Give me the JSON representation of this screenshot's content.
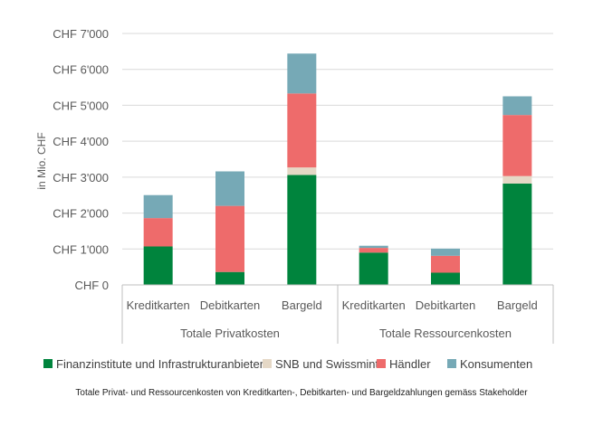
{
  "chart_data": {
    "type": "bar",
    "stacked": true,
    "title": "",
    "ylabel": "in Mio. CHF",
    "xlabel": "",
    "ylim": [
      0,
      7000
    ],
    "y_ticks": [
      0,
      1000,
      2000,
      3000,
      4000,
      5000,
      6000,
      7000
    ],
    "y_tick_labels": [
      "CHF 0",
      "CHF 1'000",
      "CHF 2'000",
      "CHF 3'000",
      "CHF 4'000",
      "CHF 5'000",
      "CHF 6'000",
      "CHF 7'000"
    ],
    "grid": true,
    "legend_position": "bottom",
    "groups": [
      {
        "label": "Totale Privatkosten",
        "categories": [
          "Kreditkarten",
          "Debitkarten",
          "Bargeld"
        ]
      },
      {
        "label": "Totale Ressourcenkosten",
        "categories": [
          "Kreditkarten",
          "Debitkarten",
          "Bargeld"
        ]
      }
    ],
    "categories": [
      "Kreditkarten",
      "Debitkarten",
      "Bargeld",
      "Kreditkarten",
      "Debitkarten",
      "Bargeld"
    ],
    "series": [
      {
        "name": "Finanzinstitute und Infrastrukturanbieter",
        "color": "#00843d",
        "values": [
          1070,
          360,
          3060,
          900,
          340,
          2820
        ]
      },
      {
        "name": "SNB und Swissmint",
        "color": "#e5d8c6",
        "values": [
          0,
          0,
          210,
          0,
          0,
          210
        ]
      },
      {
        "name": "Händler",
        "color": "#ee6b6b",
        "values": [
          790,
          1840,
          2060,
          130,
          470,
          1700
        ]
      },
      {
        "name": "Konsumenten",
        "color": "#76a9b6",
        "values": [
          640,
          960,
          1110,
          60,
          200,
          520
        ]
      }
    ],
    "caption": "Totale Privat- und Ressourcenkosten von Kreditkarten-, Debitkarten- und Bargeldzahlungen gemäss Stakeholder"
  }
}
